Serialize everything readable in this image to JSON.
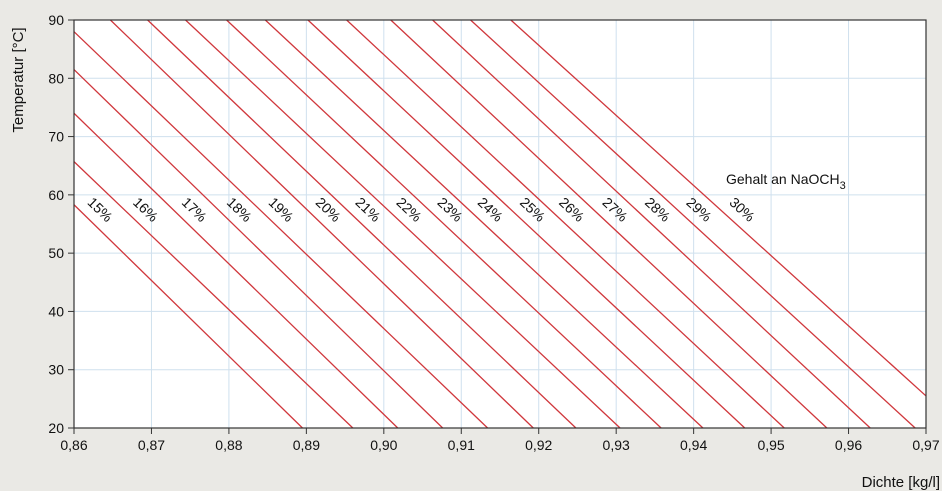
{
  "chart_data": {
    "type": "line",
    "xlabel": "Dichte [kg/l]",
    "ylabel": "Temperatur [°C]",
    "xlim": [
      0.86,
      0.97
    ],
    "ylim": [
      20,
      90
    ],
    "x_ticks": [
      "0,86",
      "0,87",
      "0,88",
      "0,89",
      "0,90",
      "0,91",
      "0,92",
      "0,93",
      "0,94",
      "0,95",
      "0,96",
      "0,97"
    ],
    "y_ticks": [
      "20",
      "30",
      "40",
      "50",
      "60",
      "70",
      "80",
      "90"
    ],
    "grid": true,
    "line_color": "#d0373c",
    "annotation": {
      "text": "Gehalt an NaOCH",
      "subscript": "3"
    },
    "series": [
      {
        "name": "15%",
        "x": [
          0.86,
          0.8895
        ],
        "y": [
          58.3,
          20
        ]
      },
      {
        "name": "16%",
        "x": [
          0.86,
          0.896
        ],
        "y": [
          65.7,
          20
        ]
      },
      {
        "name": "17%",
        "x": [
          0.86,
          0.9018
        ],
        "y": [
          74.0,
          20
        ]
      },
      {
        "name": "18%",
        "x": [
          0.86,
          0.9076
        ],
        "y": [
          81.5,
          20
        ]
      },
      {
        "name": "19%",
        "x": [
          0.86,
          0.9134
        ],
        "y": [
          88.0,
          20
        ]
      },
      {
        "name": "20%",
        "x": [
          0.8647,
          0.9193
        ],
        "y": [
          90,
          20
        ]
      },
      {
        "name": "21%",
        "x": [
          0.8695,
          0.9248
        ],
        "y": [
          90,
          20
        ]
      },
      {
        "name": "22%",
        "x": [
          0.8744,
          0.9305
        ],
        "y": [
          90,
          20
        ]
      },
      {
        "name": "23%",
        "x": [
          0.8797,
          0.9358
        ],
        "y": [
          90,
          20
        ]
      },
      {
        "name": "24%",
        "x": [
          0.8847,
          0.9412
        ],
        "y": [
          90,
          20
        ]
      },
      {
        "name": "25%",
        "x": [
          0.8902,
          0.9466
        ],
        "y": [
          90,
          20
        ]
      },
      {
        "name": "26%",
        "x": [
          0.8952,
          0.9517
        ],
        "y": [
          90,
          20
        ]
      },
      {
        "name": "27%",
        "x": [
          0.9009,
          0.9572
        ],
        "y": [
          90,
          20
        ]
      },
      {
        "name": "28%",
        "x": [
          0.9063,
          0.9628
        ],
        "y": [
          90,
          20
        ]
      },
      {
        "name": "29%",
        "x": [
          0.9112,
          0.9686
        ],
        "y": [
          90,
          20
        ]
      },
      {
        "name": "30%",
        "x": [
          0.9164,
          0.97
        ],
        "y": [
          90,
          25.5
        ]
      }
    ]
  }
}
